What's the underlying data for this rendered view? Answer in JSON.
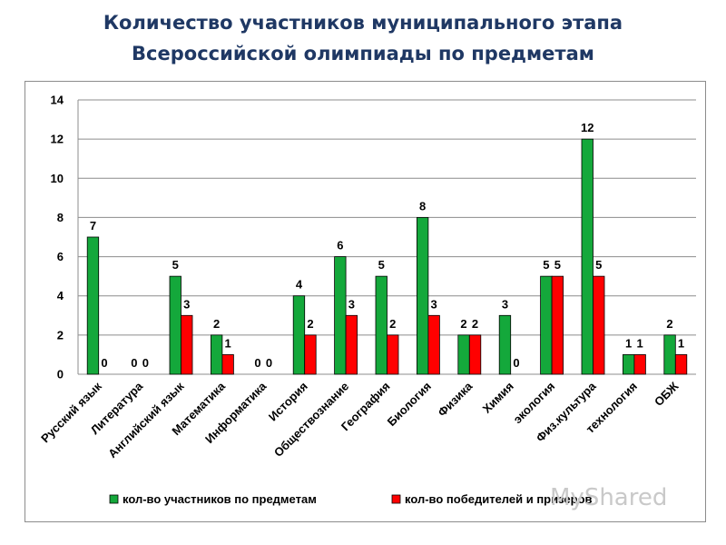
{
  "slide": {
    "title_line1": "Количество участников муниципального этапа",
    "title_line2": "Всероссийской олимпиады по предметам"
  },
  "watermark": "MyShared",
  "chart_data": {
    "type": "bar",
    "title": "",
    "xlabel": "",
    "ylabel": "",
    "ylim": [
      0,
      14
    ],
    "yticks": [
      0,
      2,
      4,
      6,
      8,
      10,
      12,
      14
    ],
    "grid": true,
    "legend_position": "bottom",
    "categories": [
      "Русский язык",
      "Литература",
      "Английский язык",
      "Математика",
      "Информатика",
      "История",
      "Обществознание",
      "География",
      "Биология",
      "Физика",
      "Химия",
      "экология",
      "Физ.культура",
      "технология",
      "ОБЖ"
    ],
    "series": [
      {
        "name": "кол-во участников по предметам",
        "color": "#14a83b",
        "values": [
          7,
          0,
          5,
          2,
          0,
          4,
          6,
          5,
          8,
          2,
          3,
          5,
          12,
          1,
          2
        ]
      },
      {
        "name": "кол-во победителей и призеров",
        "color": "#ff0000",
        "values": [
          0,
          0,
          3,
          1,
          0,
          2,
          3,
          2,
          3,
          2,
          0,
          5,
          5,
          1,
          1
        ]
      }
    ]
  }
}
